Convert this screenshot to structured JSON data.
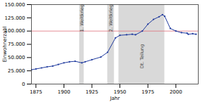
{
  "chart_data": {
    "type": "line",
    "x_label": "Jahr",
    "y_label": "Einwohnerzahl",
    "x": [
      1871,
      1875,
      1880,
      1885,
      1890,
      1895,
      1900,
      1905,
      1910,
      1916,
      1919,
      1925,
      1933,
      1939,
      1946,
      1950,
      1956,
      1961,
      1964,
      1970,
      1975,
      1980,
      1985,
      1988,
      1990,
      1995,
      2000,
      2005,
      2010,
      2011,
      2015,
      2018
    ],
    "values": [
      27000,
      28500,
      30500,
      32500,
      34000,
      37000,
      40000,
      42000,
      43000,
      40000,
      42000,
      46000,
      51000,
      60000,
      87000,
      92000,
      93000,
      94000,
      93000,
      100000,
      113000,
      122000,
      127000,
      131000,
      128000,
      105000,
      100000,
      97000,
      96000,
      94000,
      95000,
      94000
    ],
    "color": "#1f3a9e",
    "marker": "circle",
    "xlim": [
      1871,
      2020
    ],
    "xticks": [
      1875,
      1900,
      1925,
      1950,
      1975,
      2000
    ],
    "ylim": [
      0,
      150000
    ],
    "yticks": [
      0,
      {
        "value": 25000,
        "label": "25.000"
      },
      {
        "value": 50000,
        "label": "50.000"
      },
      {
        "value": 75000,
        "label": "75.000"
      },
      {
        "value": 100000,
        "label": "100.000"
      },
      {
        "value": 125000,
        "label": "125.000"
      },
      {
        "value": 150000,
        "label": "150.000"
      }
    ],
    "reference_lines": [
      100000
    ],
    "bands": [
      {
        "label": "1. Weltkrieg",
        "start": 1914,
        "end": 1918
      },
      {
        "label": "2. Weltkrieg",
        "start": 1939,
        "end": 1945
      },
      {
        "label": "Dt. Teilung",
        "start": 1949,
        "end": 1990
      }
    ],
    "grid": false
  }
}
